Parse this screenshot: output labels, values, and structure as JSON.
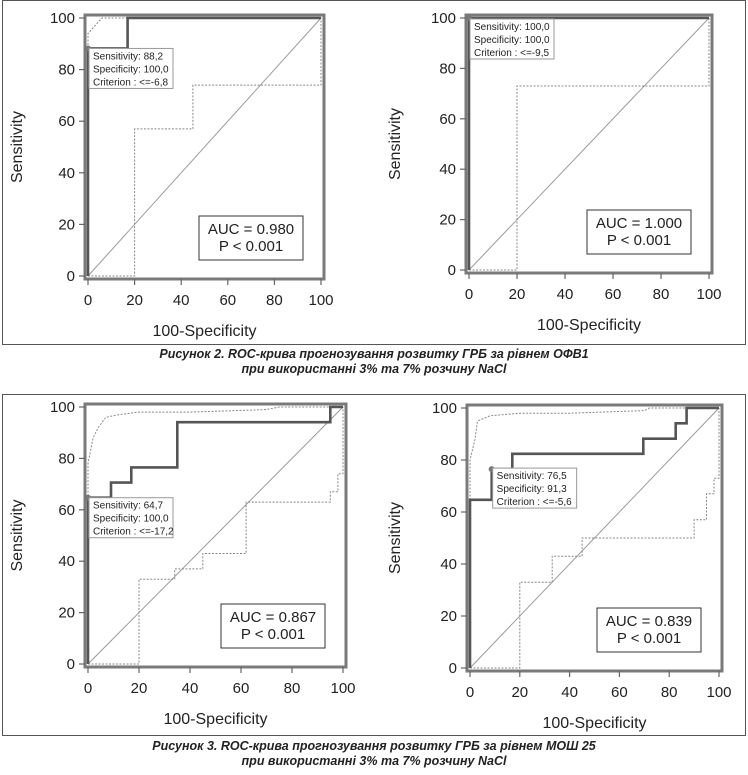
{
  "figures": [
    {
      "caption": [
        "Рисунок 2. ROC-крива прогнозування розвитку ГРБ за рівнем ОФВ1",
        "при використанні 3% та 7% розчину NaCl"
      ],
      "chart_data": [
        {
          "type": "line",
          "xlabel": "100-Specificity",
          "ylabel": "Sensitivity",
          "xlim": [
            0,
            100
          ],
          "ylim": [
            0,
            100
          ],
          "xticks": [
            0,
            20,
            40,
            60,
            80,
            100
          ],
          "yticks": [
            0,
            20,
            40,
            60,
            80,
            100
          ],
          "roc": [
            [
              0,
              0
            ],
            [
              0,
              88.2
            ],
            [
              17,
              88.2
            ],
            [
              17,
              100
            ],
            [
              100,
              100
            ]
          ],
          "ci_upper": [
            [
              0,
              0
            ],
            [
              0,
              94
            ],
            [
              3,
              97
            ],
            [
              6,
              100
            ],
            [
              100,
              100
            ]
          ],
          "ci_lower": [
            [
              0,
              0
            ],
            [
              20,
              0
            ],
            [
              20,
              57
            ],
            [
              45,
              57
            ],
            [
              45,
              74
            ],
            [
              100,
              74
            ],
            [
              100,
              100
            ]
          ],
          "criterion_point": [
            0,
            88.2
          ],
          "criterion_box": [
            "Sensitivity: 88,2",
            "Specificity: 100,0",
            "Criterion : <=-6,8"
          ],
          "auc_box": [
            "AUC = 0.980",
            "P < 0.001"
          ]
        },
        {
          "type": "line",
          "xlabel": "100-Specificity",
          "ylabel": "Sensitivity",
          "xlim": [
            0,
            100
          ],
          "ylim": [
            0,
            100
          ],
          "xticks": [
            0,
            20,
            40,
            60,
            80,
            100
          ],
          "yticks": [
            0,
            20,
            40,
            60,
            80,
            100
          ],
          "roc": [
            [
              0,
              0
            ],
            [
              0,
              100
            ],
            [
              100,
              100
            ]
          ],
          "ci_upper": [
            [
              0,
              0
            ],
            [
              0,
              100
            ],
            [
              100,
              100
            ]
          ],
          "ci_lower": [
            [
              0,
              0
            ],
            [
              20,
              0
            ],
            [
              20,
              73
            ],
            [
              100,
              73
            ],
            [
              100,
              100
            ]
          ],
          "criterion_point": [
            0,
            100
          ],
          "criterion_box": [
            "Sensitivity: 100,0",
            "Specificity: 100,0",
            "Criterion : <=-9,5"
          ],
          "auc_box": [
            "AUC = 1.000",
            "P < 0.001"
          ]
        }
      ]
    },
    {
      "caption": [
        "Рисунок 3. ROC-крива прогнозування розвитку ГРБ за рівнем МОШ 25",
        "при використанні 3% та 7% розчину NaCl"
      ],
      "chart_data": [
        {
          "type": "line",
          "xlabel": "100-Specificity",
          "ylabel": "Sensitivity",
          "xlim": [
            0,
            100
          ],
          "ylim": [
            0,
            100
          ],
          "xticks": [
            0,
            20,
            40,
            60,
            80,
            100
          ],
          "yticks": [
            0,
            20,
            40,
            60,
            80,
            100
          ],
          "roc": [
            [
              0,
              0
            ],
            [
              0,
              64.7
            ],
            [
              9,
              64.7
            ],
            [
              9,
              70.6
            ],
            [
              17,
              70.6
            ],
            [
              17,
              76.5
            ],
            [
              35,
              76.5
            ],
            [
              35,
              94.1
            ],
            [
              95,
              94.1
            ],
            [
              95,
              100
            ],
            [
              100,
              100
            ]
          ],
          "ci_upper": [
            [
              0,
              0
            ],
            [
              0,
              78
            ],
            [
              2,
              88
            ],
            [
              4,
              92
            ],
            [
              7,
              96
            ],
            [
              12,
              97
            ],
            [
              20,
              98
            ],
            [
              40,
              98
            ],
            [
              70,
              99
            ],
            [
              75,
              100
            ],
            [
              98,
              100
            ],
            [
              100,
              100
            ]
          ],
          "ci_lower": [
            [
              0,
              0
            ],
            [
              20,
              0
            ],
            [
              20,
              33
            ],
            [
              34,
              33
            ],
            [
              34,
              37
            ],
            [
              45,
              37
            ],
            [
              45,
              43
            ],
            [
              62,
              43
            ],
            [
              62,
              63
            ],
            [
              95,
              63
            ],
            [
              95,
              67
            ],
            [
              98,
              67
            ],
            [
              98,
              74
            ],
            [
              100,
              74
            ],
            [
              100,
              100
            ]
          ],
          "criterion_point": [
            0,
            64.7
          ],
          "criterion_box": [
            "Sensitivity: 64,7",
            "Specificity: 100,0",
            "Criterion : <=-17,2"
          ],
          "auc_box": [
            "AUC = 0.867",
            "P < 0.001"
          ]
        },
        {
          "type": "line",
          "xlabel": "100-Specificity",
          "ylabel": "Sensitivity",
          "xlim": [
            0,
            100
          ],
          "ylim": [
            0,
            100
          ],
          "xticks": [
            0,
            20,
            40,
            60,
            80,
            100
          ],
          "yticks": [
            0,
            20,
            40,
            60,
            80,
            100
          ],
          "roc": [
            [
              0,
              0
            ],
            [
              0,
              64.7
            ],
            [
              8.7,
              64.7
            ],
            [
              8.7,
              76.5
            ],
            [
              17,
              76.5
            ],
            [
              17,
              82.4
            ],
            [
              69.6,
              82.4
            ],
            [
              69.6,
              88.2
            ],
            [
              82.6,
              88.2
            ],
            [
              82.6,
              94.1
            ],
            [
              87,
              94.1
            ],
            [
              87,
              100
            ],
            [
              100,
              100
            ]
          ],
          "ci_upper": [
            [
              0,
              0
            ],
            [
              0,
              80
            ],
            [
              2,
              88
            ],
            [
              3,
              95
            ],
            [
              8,
              97
            ],
            [
              20,
              98
            ],
            [
              40,
              98
            ],
            [
              70,
              99
            ],
            [
              72,
              100
            ],
            [
              100,
              100
            ]
          ],
          "ci_lower": [
            [
              0,
              0
            ],
            [
              20,
              0
            ],
            [
              20,
              33
            ],
            [
              33,
              33
            ],
            [
              33,
              43
            ],
            [
              45,
              43
            ],
            [
              45,
              50
            ],
            [
              90,
              50
            ],
            [
              90,
              57
            ],
            [
              95,
              57
            ],
            [
              95,
              67
            ],
            [
              98,
              67
            ],
            [
              98,
              73
            ],
            [
              100,
              73
            ],
            [
              100,
              100
            ]
          ],
          "criterion_point": [
            8.7,
            76.5
          ],
          "criterion_box": [
            "Sensitivity: 76,5",
            "Specificity: 91,3",
            "Criterion : <=-5,6"
          ],
          "auc_box": [
            "AUC = 0.839",
            "P < 0.001"
          ]
        }
      ]
    }
  ]
}
